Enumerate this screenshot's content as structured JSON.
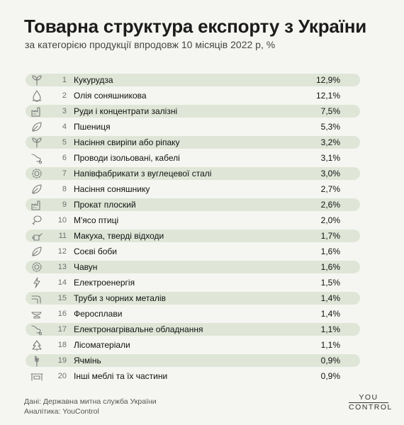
{
  "title": "Товарна структура експорту з України",
  "subtitle": "за категорією продукції впродовж 10 місяців 2022 р, %",
  "chart_data": {
    "type": "table",
    "title": "Товарна структура експорту з України",
    "subtitle": "за категорією продукції впродовж 10 місяців 2022 р, %",
    "categories": [
      "Кукурудза",
      "Олія соняшникова",
      "Руди і концентрати залізні",
      "Пшениця",
      "Насіння свиріпи або ріпаку",
      "Проводи ізольовані, кабелі",
      "Напівфабрикати з вуглецевої сталі",
      "Насіння соняшнику",
      "Прокат плоский",
      "М'ясо птиці",
      "Макуха, тверді відходи",
      "Соєві боби",
      "Чавун",
      "Електроенергія",
      "Труби з чорних металів",
      "Феросплави",
      "Електронагрівальне обладнання",
      "Лісоматеріали",
      "Ячмінь",
      "Інші меблі та їх частини"
    ],
    "values": [
      12.9,
      12.1,
      7.5,
      5.3,
      3.2,
      3.1,
      3.0,
      2.7,
      2.6,
      2.0,
      1.7,
      1.6,
      1.6,
      1.5,
      1.4,
      1.4,
      1.1,
      1.1,
      0.9,
      0.9
    ],
    "rows": [
      {
        "rank": "1",
        "name": "Кукурудза",
        "value": "12,9%",
        "icon": "sprout-icon"
      },
      {
        "rank": "2",
        "name": "Олія соняшникова",
        "value": "12,1%",
        "icon": "oil-drop-icon"
      },
      {
        "rank": "3",
        "name": "Руди і концентрати залізні",
        "value": "7,5%",
        "icon": "factory-icon"
      },
      {
        "rank": "4",
        "name": "Пшениця",
        "value": "5,3%",
        "icon": "leaf-icon"
      },
      {
        "rank": "5",
        "name": "Насіння свиріпи або ріпаку",
        "value": "3,2%",
        "icon": "sprout-icon"
      },
      {
        "rank": "6",
        "name": "Проводи ізольовані, кабелі",
        "value": "3,1%",
        "icon": "cable-icon"
      },
      {
        "rank": "7",
        "name": "Напівфабрикати з вуглецевої сталі",
        "value": "3,0%",
        "icon": "gear-icon"
      },
      {
        "rank": "8",
        "name": "Насіння соняшнику",
        "value": "2,7%",
        "icon": "leaf-icon"
      },
      {
        "rank": "9",
        "name": "Прокат плоский",
        "value": "2,6%",
        "icon": "factory-icon"
      },
      {
        "rank": "10",
        "name": "М'ясо птиці",
        "value": "2,0%",
        "icon": "drumstick-icon"
      },
      {
        "rank": "11",
        "name": "Макуха, тверді відходи",
        "value": "1,7%",
        "icon": "watering-can-icon"
      },
      {
        "rank": "12",
        "name": "Соєві боби",
        "value": "1,6%",
        "icon": "leaf-icon"
      },
      {
        "rank": "13",
        "name": "Чавун",
        "value": "1,6%",
        "icon": "gear-icon"
      },
      {
        "rank": "14",
        "name": "Електроенергія",
        "value": "1,5%",
        "icon": "lightning-icon"
      },
      {
        "rank": "15",
        "name": "Труби з чорних металів",
        "value": "1,4%",
        "icon": "pipe-icon"
      },
      {
        "rank": "16",
        "name": "Феросплави",
        "value": "1,4%",
        "icon": "anvil-icon"
      },
      {
        "rank": "17",
        "name": "Електронагрівальне обладнання",
        "value": "1,1%",
        "icon": "cable-icon"
      },
      {
        "rank": "18",
        "name": "Лісоматеріали",
        "value": "1,1%",
        "icon": "tree-icon"
      },
      {
        "rank": "19",
        "name": "Ячмінь",
        "value": "0,9%",
        "icon": "grain-icon"
      },
      {
        "rank": "20",
        "name": "Інші меблі та їх частини",
        "value": "0,9%",
        "icon": "furniture-icon"
      }
    ]
  },
  "footer": {
    "source": "Дані: Державна митна служба України",
    "analytics": "Аналітика: YouControl"
  },
  "logo": {
    "line1": "YOU",
    "line2": "CONTROL"
  },
  "colors": {
    "bar": "#dfe6d7",
    "background": "#f5f6f1",
    "icon": "#7a7a7a"
  }
}
